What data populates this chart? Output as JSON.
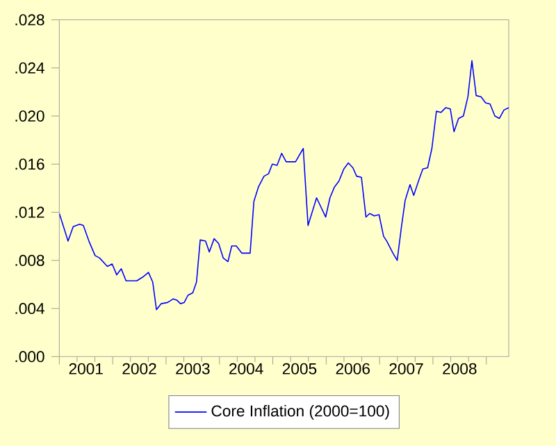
{
  "chart_data": {
    "type": "line",
    "x": [
      2001.0,
      2001.164,
      2001.26,
      2001.38,
      2001.45,
      2001.555,
      2001.67,
      2001.755,
      2001.9,
      2001.99,
      2002.075,
      2002.16,
      2002.25,
      2002.45,
      2002.56,
      2002.67,
      2002.75,
      2002.82,
      2002.91,
      2003.03,
      2003.135,
      2003.2,
      2003.27,
      2003.34,
      2003.41,
      2003.5,
      2003.57,
      2003.64,
      2003.74,
      2003.81,
      2003.9,
      2003.985,
      2004.07,
      2004.16,
      2004.23,
      2004.315,
      2004.42,
      2004.575,
      2004.645,
      2004.73,
      2004.835,
      2004.92,
      2004.99,
      2005.08,
      2005.165,
      2005.25,
      2005.425,
      2005.57,
      2005.66,
      2005.82,
      2005.99,
      2006.07,
      2006.155,
      2006.24,
      2006.33,
      2006.415,
      2006.5,
      2006.57,
      2006.66,
      2006.745,
      2006.815,
      2006.9,
      2006.99,
      2007.075,
      2007.135,
      2007.25,
      2007.33,
      2007.41,
      2007.48,
      2007.57,
      2007.64,
      2007.73,
      2007.81,
      2007.9,
      2007.98,
      2008.065,
      2008.15,
      2008.24,
      2008.325,
      2008.395,
      2008.48,
      2008.57,
      2008.655,
      2008.73,
      2008.81,
      2008.9,
      2008.985,
      2009.07,
      2009.16,
      2009.245,
      2009.33,
      2009.42
    ],
    "series": [
      {
        "name": "Core Inflation (2000=100)",
        "color": "#0000ff",
        "values": [
          0.0119,
          0.0096,
          0.0108,
          0.011,
          0.0109,
          0.0096,
          0.0084,
          0.0082,
          0.0075,
          0.0077,
          0.0068,
          0.0073,
          0.0063,
          0.0063,
          0.0066,
          0.007,
          0.0062,
          0.0039,
          0.0044,
          0.0045,
          0.0048,
          0.0047,
          0.0044,
          0.0045,
          0.0051,
          0.0053,
          0.0062,
          0.0097,
          0.0096,
          0.0087,
          0.0098,
          0.0094,
          0.0082,
          0.0079,
          0.0092,
          0.0092,
          0.0086,
          0.0086,
          0.0129,
          0.0141,
          0.015,
          0.0152,
          0.016,
          0.0159,
          0.0169,
          0.0162,
          0.0162,
          0.0173,
          0.0109,
          0.0132,
          0.0116,
          0.0132,
          0.0141,
          0.0146,
          0.0156,
          0.0161,
          0.0157,
          0.015,
          0.0149,
          0.0116,
          0.0119,
          0.0117,
          0.0118,
          0.01,
          0.0096,
          0.0086,
          0.008,
          0.0108,
          0.013,
          0.0143,
          0.0134,
          0.0146,
          0.0156,
          0.0157,
          0.0173,
          0.0204,
          0.0203,
          0.0207,
          0.0206,
          0.0187,
          0.0198,
          0.02,
          0.0216,
          0.0246,
          0.0217,
          0.0216,
          0.0211,
          0.021,
          0.02,
          0.0198,
          0.0205,
          0.0207
        ]
      }
    ],
    "xlim": [
      2001.0,
      2009.42
    ],
    "xticks": [
      {
        "value": 2001,
        "label": null
      },
      {
        "value": 2001.5,
        "label": "2001"
      },
      {
        "value": 2002,
        "label": null
      },
      {
        "value": 2002.5,
        "label": "2002"
      },
      {
        "value": 2003,
        "label": null
      },
      {
        "value": 2003.5,
        "label": "2003"
      },
      {
        "value": 2004,
        "label": null
      },
      {
        "value": 2004.5,
        "label": "2004"
      },
      {
        "value": 2005,
        "label": null
      },
      {
        "value": 2005.5,
        "label": "2005"
      },
      {
        "value": 2006,
        "label": null
      },
      {
        "value": 2006.5,
        "label": "2006"
      },
      {
        "value": 2007,
        "label": null
      },
      {
        "value": 2007.5,
        "label": "2007"
      },
      {
        "value": 2008,
        "label": null
      },
      {
        "value": 2008.5,
        "label": "2008"
      },
      {
        "value": 2009,
        "label": null
      }
    ],
    "ylim": [
      0.0,
      0.028
    ],
    "yticks": [
      {
        "value": 0.0,
        "label": ".000"
      },
      {
        "value": 0.004,
        "label": ".004"
      },
      {
        "value": 0.008,
        "label": ".008"
      },
      {
        "value": 0.012,
        "label": ".012"
      },
      {
        "value": 0.016,
        "label": ".016"
      },
      {
        "value": 0.02,
        "label": ".020"
      },
      {
        "value": 0.024,
        "label": ".024"
      },
      {
        "value": 0.028,
        "label": ".028"
      }
    ],
    "legend": "bottom",
    "grid": false,
    "line_style": "solid",
    "marker": "none"
  }
}
